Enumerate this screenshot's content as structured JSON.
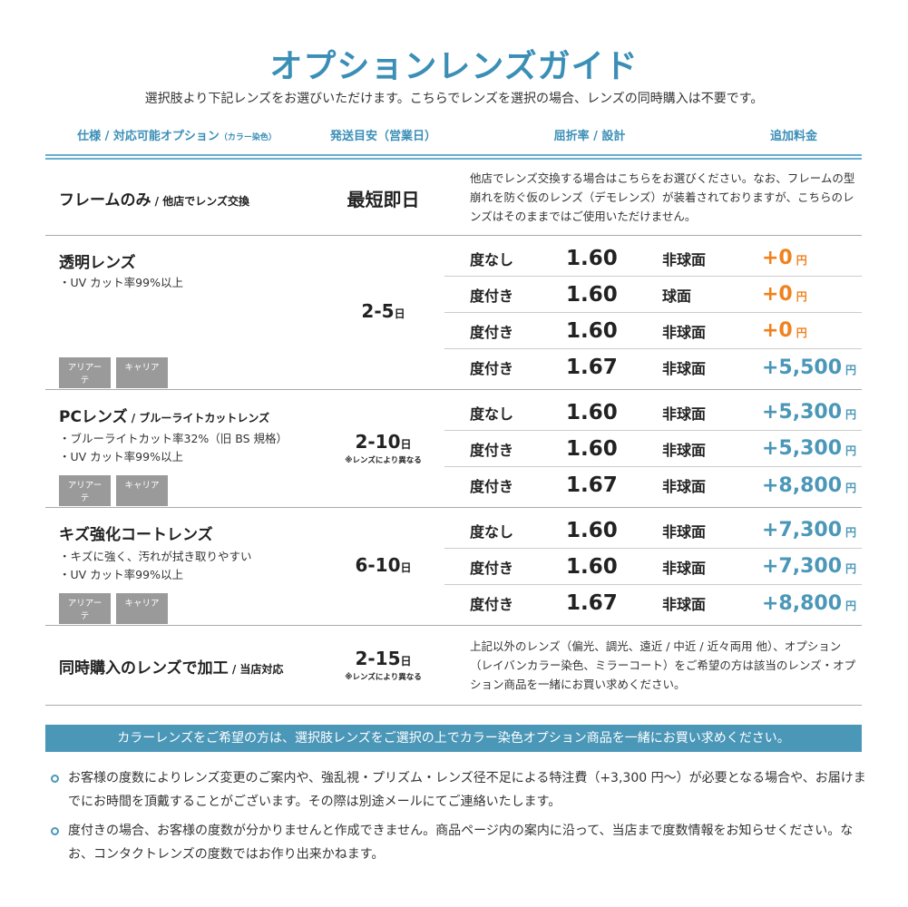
{
  "title": "オプションレンズガイド",
  "subtitle": "選択肢より下記レンズをお選びいただけます。こちらでレンズを選択の場合、レンズの同時購入は不要です。",
  "headers": {
    "spec": "仕様 / 対応可能オプション",
    "spec_small": "（カラー染色）",
    "days": "発送目安（営業日）",
    "index": "屈折率 / 設計",
    "price": "追加料金"
  },
  "colors": {
    "accent": "#3b8fb7",
    "zero_price": "#f0821e",
    "price": "#4b97b8"
  },
  "sections": [
    {
      "name": "フレームのみ",
      "name_sub": " / 他店でレンズ交換",
      "days": "最短即日",
      "desc": "他店でレンズ交換する場合はこちらをお選びください。なお、フレームの型崩れを防ぐ仮のレンズ（デモレンズ）が装着されておりますが、こちらのレンズはそのままではご使用いただけません。"
    },
    {
      "name": "透明レンズ",
      "name_sub": "",
      "features": [
        "・UV カット率99%以上"
      ],
      "tags": [
        "アリアーテ",
        "キャリア"
      ],
      "days": "2-5",
      "days_unit": "日",
      "rows": [
        [
          "度なし",
          "1.60",
          "非球面",
          "+0",
          "円"
        ],
        [
          "度付き",
          "1.60",
          "球面",
          "+0",
          "円"
        ],
        [
          "度付き",
          "1.60",
          "非球面",
          "+0",
          "円"
        ],
        [
          "度付き",
          "1.67",
          "非球面",
          "+5,500",
          "円"
        ]
      ]
    },
    {
      "name": "PCレンズ",
      "name_sub": " / ブルーライトカットレンズ",
      "features": [
        "・ブルーライトカット率32%（旧 BS 規格）",
        "・UV カット率99%以上"
      ],
      "tags": [
        "アリアーテ",
        "キャリア"
      ],
      "days": "2-10",
      "days_unit": "日",
      "days_note": "※レンズにより異なる",
      "rows": [
        [
          "度なし",
          "1.60",
          "非球面",
          "+5,300",
          "円"
        ],
        [
          "度付き",
          "1.60",
          "非球面",
          "+5,300",
          "円"
        ],
        [
          "度付き",
          "1.67",
          "非球面",
          "+8,800",
          "円"
        ]
      ]
    },
    {
      "name": "キズ強化コートレンズ",
      "name_sub": "",
      "features": [
        "・キズに強く、汚れが拭き取りやすい",
        "・UV カット率99%以上"
      ],
      "tags": [
        "アリアーテ",
        "キャリア"
      ],
      "days": "6-10",
      "days_unit": "日",
      "rows": [
        [
          "度なし",
          "1.60",
          "非球面",
          "+7,300",
          "円"
        ],
        [
          "度付き",
          "1.60",
          "非球面",
          "+7,300",
          "円"
        ],
        [
          "度付き",
          "1.67",
          "非球面",
          "+8,800",
          "円"
        ]
      ]
    },
    {
      "name": "同時購入のレンズで加工",
      "name_sub": " / 当店対応",
      "days": "2-15",
      "days_unit": "日",
      "days_note": "※レンズにより異なる",
      "desc": "上記以外のレンズ（偏光、調光、遠近 / 中近 / 近々両用 他）、オプション（レイバンカラー染色、ミラーコート）をご希望の方は該当のレンズ・オプション商品を一緒にお買い求めください。"
    }
  ],
  "banner": "カラーレンズをご希望の方は、選択肢レンズをご選択の上でカラー染色オプション商品を一緒にお買い求めください。",
  "notes": [
    "お客様の度数によりレンズ変更のご案内や、強乱視・プリズム・レンズ径不足による特注費（+3,300 円〜）が必要となる場合や、お届けまでにお時間を頂戴することがございます。その際は別途メールにてご連絡いたします。",
    "度付きの場合、お客様の度数が分かりませんと作成できません。商品ページ内の案内に沿って、当店まで度数情報をお知らせください。なお、コンタクトレンズの度数ではお作り出来かねます。"
  ]
}
